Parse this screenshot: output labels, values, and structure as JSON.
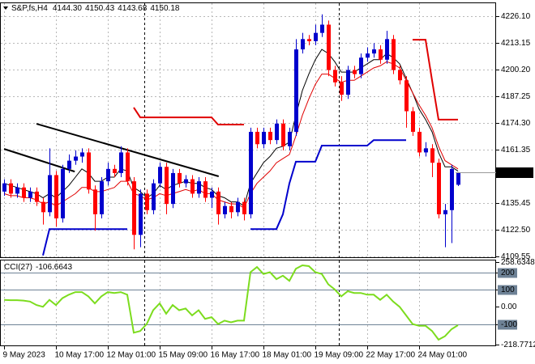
{
  "chart_data": {
    "type": "candlestick",
    "title": "S&P,fs,H4",
    "ohlc_labels": [
      "4144.30",
      "4150.43",
      "4143.68",
      "4150.18"
    ],
    "up_color": "#0000cd",
    "down_color": "#ff0000",
    "grid": true,
    "categories": [
      "9 May 2023",
      null,
      null,
      null,
      null,
      null,
      null,
      null,
      "10 May 17:00",
      null,
      null,
      null,
      null,
      null,
      null,
      null,
      "12 May 01:00",
      null,
      null,
      null,
      null,
      null,
      null,
      null,
      "15 May 09:00",
      null,
      null,
      null,
      null,
      null,
      null,
      null,
      "16 May 17:00",
      null,
      null,
      null,
      null,
      null,
      null,
      null,
      "18 May 01:00",
      null,
      null,
      null,
      null,
      null,
      null,
      null,
      "19 May 09:00",
      null,
      null,
      null,
      null,
      null,
      null,
      null,
      "22 May 17:00",
      null,
      null,
      null,
      null,
      null,
      null,
      null,
      "24 May 01:00",
      null,
      null,
      null,
      null,
      null,
      null
    ],
    "open": [
      4141,
      4145,
      4140,
      4143,
      4138,
      4141,
      4136,
      4131,
      4149,
      4128,
      4152,
      4156,
      4158,
      4160,
      4142,
      4130,
      4146,
      4152,
      4150,
      4160,
      4146,
      4120,
      4140,
      4132,
      4145,
      4153,
      4135,
      4150,
      4145,
      4147,
      4140,
      4146,
      4138,
      4141,
      4130,
      4134,
      4131,
      4136,
      4130,
      4170,
      4164,
      4170,
      4166,
      4174,
      4163,
      4170,
      4210,
      4215,
      4214,
      4218,
      4222,
      4200,
      4194,
      4188,
      4200,
      4198,
      4206,
      4208,
      4210,
      4205,
      4215,
      4200,
      4195,
      4180,
      4170,
      4160,
      4162,
      4155,
      4130,
      4132,
      4144.3
    ],
    "high": [
      4147,
      4147,
      4145,
      4145,
      4143,
      4143,
      4138,
      4162,
      4151,
      4154,
      4159,
      4161,
      4162,
      4162,
      4144,
      4148,
      4155,
      4154,
      4163,
      4162,
      4148,
      4142,
      4142,
      4147,
      4155,
      4155,
      4152,
      4152,
      4149,
      4149,
      4148,
      4148,
      4143,
      4143,
      4136,
      4136,
      4138,
      4138,
      4172,
      4172,
      4172,
      4172,
      4176,
      4176,
      4172,
      4215,
      4218,
      4217,
      4222,
      4227,
      4224,
      4202,
      4197,
      4202,
      4202,
      4208,
      4211,
      4213,
      4212,
      4219,
      4217,
      4202,
      4197,
      4182,
      4172,
      4165,
      4164,
      4157,
      4135,
      4154,
      4150.43
    ],
    "low": [
      4139,
      4138,
      4138,
      4136,
      4136,
      4134,
      4125,
      4129,
      4124,
      4126,
      4150,
      4154,
      4155,
      4140,
      4122,
      4128,
      4144,
      4148,
      4148,
      4144,
      4113,
      4114,
      4130,
      4130,
      4143,
      4130,
      4133,
      4143,
      4143,
      4138,
      4138,
      4136,
      4133,
      4125,
      4128,
      4128,
      4129,
      4127,
      4128,
      4162,
      4162,
      4164,
      4164,
      4161,
      4161,
      4168,
      4208,
      4212,
      4212,
      4216,
      4197,
      4192,
      4185,
      4186,
      4196,
      4196,
      4204,
      4206,
      4203,
      4203,
      4198,
      4193,
      4172,
      4168,
      4158,
      4158,
      4148,
      4128,
      4114,
      4116,
      4143.68
    ],
    "close": [
      4145,
      4140,
      4143,
      4138,
      4141,
      4136,
      4131,
      4149,
      4128,
      4152,
      4156,
      4158,
      4160,
      4142,
      4130,
      4146,
      4152,
      4150,
      4160,
      4146,
      4120,
      4140,
      4132,
      4145,
      4153,
      4135,
      4150,
      4145,
      4147,
      4140,
      4146,
      4138,
      4141,
      4130,
      4134,
      4131,
      4136,
      4130,
      4170,
      4164,
      4170,
      4166,
      4174,
      4163,
      4170,
      4210,
      4215,
      4214,
      4218,
      4222,
      4200,
      4194,
      4188,
      4200,
      4198,
      4206,
      4208,
      4210,
      4205,
      4215,
      4200,
      4195,
      4180,
      4170,
      4160,
      4162,
      4155,
      4130,
      4132,
      4152,
      4150.18
    ],
    "ylim": [
      4109.15,
      4232.0
    ],
    "yticks": [
      {
        "value": 4226.1,
        "label": "4226.10"
      },
      4213.15,
      {
        "value": 4200.2,
        "label": "4200.20"
      },
      4187.25,
      {
        "value": 4174.3,
        "label": "4174.30"
      },
      4161.35,
      4135.45,
      {
        "value": 4122.5,
        "label": "4122.50"
      },
      4109.55
    ],
    "current_price": {
      "value": 4150.18,
      "label": "4150.18"
    },
    "overlays": [
      {
        "color": "#000000",
        "values": [
          4145,
          4144,
          4143,
          4142,
          4141,
          4140,
          4138,
          4140,
          4138,
          4141,
          4144,
          4148,
          4152,
          4150,
          4146,
          4146,
          4148,
          4148,
          4152,
          4151,
          4143,
          4141,
          4138,
          4140,
          4144,
          4142,
          4144,
          4145,
          4146,
          4145,
          4145,
          4143,
          4142,
          4139,
          4138,
          4136,
          4136,
          4134,
          4145,
          4150,
          4155,
          4158,
          4162,
          4163,
          4165,
          4178,
          4190,
          4198,
          4205,
          4210,
          4208,
          4204,
          4199,
          4199,
          4199,
          4201,
          4203,
          4205,
          4205,
          4208,
          4206,
          4203,
          4196,
          4189,
          4181,
          4176,
          4170,
          4160,
          4153,
          4153,
          4151
        ]
      },
      {
        "color": "#e00000",
        "values": [
          4140,
          4139,
          4139,
          4138,
          4138,
          4137,
          4135,
          4136,
          4134,
          4136,
          4138,
          4140,
          4143,
          4143,
          4141,
          4141,
          4142,
          4143,
          4146,
          4146,
          4140,
          4139,
          4137,
          4138,
          4140,
          4139,
          4140,
          4141,
          4142,
          4141,
          4142,
          4140,
          4140,
          4137,
          4136,
          4135,
          4135,
          4133,
          4140,
          4145,
          4148,
          4151,
          4155,
          4157,
          4159,
          4168,
          4178,
          4186,
          4193,
          4198,
          4198,
          4196,
          4194,
          4195,
          4195,
          4197,
          4199,
          4201,
          4202,
          4204,
          4203,
          4201,
          4195,
          4189,
          4183,
          4178,
          4172,
          4163,
          4156,
          4154,
          4152
        ]
      },
      {
        "color": "#0000cd",
        "width": 2,
        "values": [
          null,
          null,
          null,
          null,
          null,
          null,
          4110,
          4122.8,
          4122.8,
          4122.8,
          4122.8,
          4122.8,
          4122.8,
          4122.8,
          4122.8,
          4122.8,
          4122.8,
          4122.8,
          4122.8,
          4122.8,
          null,
          null,
          null,
          null,
          null,
          null,
          null,
          null,
          null,
          null,
          null,
          null,
          null,
          null,
          null,
          null,
          null,
          null,
          4122.8,
          4122.8,
          4122.8,
          4122.8,
          4122.8,
          4130,
          4145,
          4155.5,
          4155.5,
          4155.5,
          4155.5,
          4163.3,
          4163.3,
          4163.3,
          4163.3,
          4163.3,
          4163.3,
          4163.3,
          4163.3,
          4166,
          4166,
          4166,
          4166,
          4166,
          4166,
          null,
          null,
          null,
          null,
          null,
          null,
          null,
          null
        ]
      },
      {
        "color": "#e00000",
        "width": 2,
        "values": [
          null,
          null,
          null,
          null,
          null,
          null,
          null,
          null,
          null,
          null,
          null,
          null,
          null,
          null,
          null,
          null,
          null,
          null,
          null,
          null,
          4181.8,
          4177,
          4177,
          4177,
          4177,
          4177,
          4177,
          4177,
          4177,
          4177,
          4177,
          4177,
          4177,
          4173.5,
          4173.5,
          4173.5,
          4173.5,
          4173.5,
          null,
          null,
          null,
          null,
          null,
          null,
          null,
          null,
          null,
          null,
          null,
          null,
          null,
          null,
          null,
          null,
          null,
          null,
          null,
          null,
          null,
          null,
          null,
          null,
          null,
          4214.7,
          4214.7,
          4214.7,
          4195,
          4175.9,
          4175.9,
          4175.9,
          4175.9
        ]
      }
    ],
    "trendlines": [
      {
        "color": "#000000",
        "from": [
          0,
          4161.7
        ],
        "to": [
          10.9,
          4150.7
        ]
      },
      {
        "color": "#000000",
        "from": [
          5,
          4173.9
        ],
        "to": [
          33.1,
          4148.4
        ]
      }
    ],
    "cci": {
      "name": "CCI(27)",
      "color": "#7cdc1e",
      "values": [
        40,
        38,
        38,
        36,
        30,
        10,
        0,
        40,
        10,
        50,
        70,
        85,
        85,
        60,
        20,
        60,
        85,
        80,
        85,
        70,
        -150,
        -140,
        -100,
        -20,
        20,
        -40,
        10,
        -20,
        -10,
        -50,
        -20,
        -70,
        -60,
        -100,
        -80,
        -90,
        -80,
        -80,
        200,
        230,
        190,
        200,
        160,
        180,
        150,
        220,
        240,
        235,
        200,
        190,
        130,
        100,
        60,
        90,
        80,
        80,
        70,
        70,
        40,
        70,
        30,
        0,
        -50,
        -100,
        -110,
        -110,
        -140,
        -190,
        -170,
        -130,
        -106.6643
      ],
      "ylim": [
        -218.7712,
        258.6348
      ],
      "yticks": [
        258.6348,
        200,
        100,
        {
          "value": 0,
          "label": "0.00"
        },
        -100,
        -218.7712
      ],
      "levels": [
        200,
        100,
        -100
      ],
      "level_color": "#6e8296"
    }
  }
}
